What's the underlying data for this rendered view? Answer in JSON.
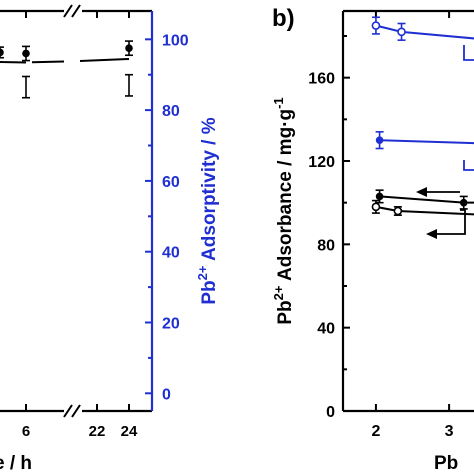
{
  "chart_data": [
    {
      "panel": "a",
      "type": "scatter",
      "xlabel_visible": "e / h",
      "ylabel_right": "Pb2+ Adsorptivity / %",
      "ylabel_right_parts": {
        "base": "Pb",
        "sup": "2+",
        "rest": " Adsorptivity / %"
      },
      "x_ticks": [
        "6",
        "22",
        "24"
      ],
      "y_ticks_right": [
        "0",
        "20",
        "40",
        "60",
        "80",
        "100"
      ],
      "y_right_lim": [
        -5,
        108
      ],
      "axis_break": "//",
      "colors": {
        "left_axis": "#000000",
        "right_axis": "#1f2fd1"
      },
      "series": [
        {
          "marker": "filled-circle",
          "color": "#000000",
          "points": [
            {
              "x": "5",
              "y": 96.3
            },
            {
              "x": "6",
              "y": 96.0
            },
            {
              "x": "24",
              "y": 97.5
            }
          ],
          "errors": [
            1.5,
            2.0,
            2.0
          ]
        },
        {
          "marker": "error-bar-only",
          "color": "#000000",
          "points": [
            {
              "x": "6",
              "y": 86.5
            },
            {
              "x": "24",
              "y": 87.0
            }
          ],
          "errors": [
            3.0,
            3.0
          ]
        }
      ]
    },
    {
      "panel": "b",
      "panel_label": "b)",
      "type": "line",
      "xlabel_visible": "Pb",
      "ylabel": "Pb2+ Adsorbance / mg·g-1",
      "ylabel_parts": {
        "base": "Pb",
        "sup": "2+",
        "rest": " Adsorbance / mg·g",
        "sup2": "-1"
      },
      "x_ticks": [
        "2",
        "3"
      ],
      "y_ticks": [
        "0",
        "40",
        "80",
        "120",
        "160"
      ],
      "ylim": [
        0,
        192
      ],
      "xlim": [
        1.55,
        3.6
      ],
      "series": [
        {
          "marker": "open-circle",
          "color": "#1f2fd1",
          "x": [
            2.0,
            2.35,
            3.6
          ],
          "y": [
            185,
            182,
            178
          ],
          "errors": [
            4,
            4,
            0
          ]
        },
        {
          "marker": "filled-circle",
          "color": "#1f2fd1",
          "x": [
            2.05,
            3.4,
            3.6
          ],
          "y": [
            130,
            128.5,
            127
          ],
          "errors": [
            4,
            4,
            0
          ]
        },
        {
          "marker": "filled-circle",
          "color": "#000000",
          "x": [
            2.05,
            3.2,
            3.6
          ],
          "y": [
            103,
            100,
            100
          ],
          "errors": [
            3,
            3,
            0
          ]
        },
        {
          "marker": "open-circle",
          "color": "#000000",
          "x": [
            2.0,
            2.3,
            3.6
          ],
          "y": [
            98,
            96,
            94
          ],
          "errors": [
            3,
            2,
            0
          ]
        }
      ]
    }
  ]
}
